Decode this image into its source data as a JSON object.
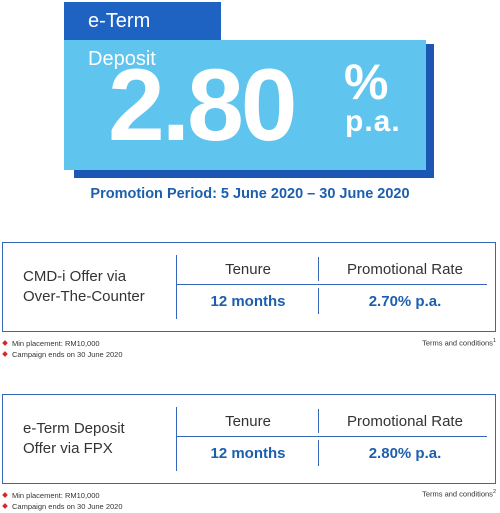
{
  "hero": {
    "tab_label": "e-Term Deposit",
    "rate": "2.80",
    "percent": "%",
    "per_annum": "p.a."
  },
  "promotion_period": "Promotion Period: 5 June 2020 – 30 June 2020",
  "offers": [
    {
      "title_line1": "CMD-i Offer via",
      "title_line2": "Over-The-Counter",
      "col_tenure": "Tenure",
      "col_rate": "Promotional Rate",
      "tenure": "12 months",
      "rate": "2.70% p.a.",
      "notes": [
        "Min placement: RM10,000",
        "Campaign ends on 30 June 2020"
      ],
      "terms_label": "Terms and conditions",
      "terms_ref": "1"
    },
    {
      "title_line1": "e-Term Deposit",
      "title_line2": "Offer via FPX",
      "col_tenure": "Tenure",
      "col_rate": "Promotional Rate",
      "tenure": "12 months",
      "rate": "2.80% p.a.",
      "notes": [
        "Min placement: RM10,000",
        "Campaign ends on 30 June 2020"
      ],
      "terms_label": "Terms and conditions",
      "terms_ref": "2"
    }
  ],
  "colors": {
    "brand_blue": "#1e63c2",
    "hero_light_blue": "#5fc4ee",
    "accent_text": "#1c5fae",
    "bullet_red": "#d8262d"
  }
}
